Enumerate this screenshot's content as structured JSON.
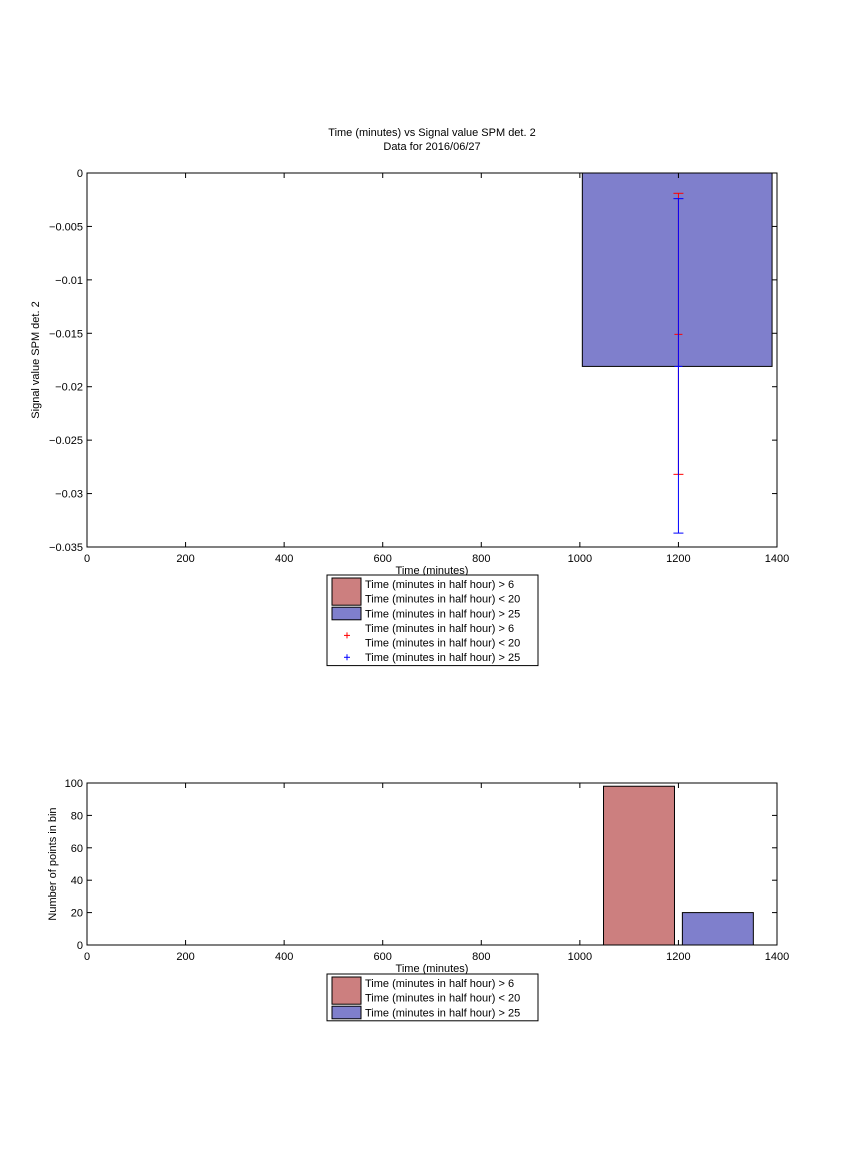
{
  "title": "Time (minutes) vs Signal value SPM det. 2",
  "subtitle": "Data for 2016/06/27",
  "colors": {
    "red_bar": "#cc7f7f",
    "blue_bar": "#7f7fcc",
    "red_marker": "#ff0000",
    "blue_marker": "#0000ff"
  },
  "chart_data": [
    {
      "type": "bar",
      "title": "Time (minutes) vs Signal value SPM det. 2",
      "subtitle": "Data for 2016/06/27",
      "xlabel": "Time (minutes)",
      "ylabel": "Signal value SPM det. 2",
      "xlim": [
        0,
        1400
      ],
      "ylim": [
        -0.035,
        0
      ],
      "xticks": [
        0,
        200,
        400,
        600,
        800,
        1000,
        1200,
        1400
      ],
      "yticks": [
        0,
        -0.005,
        -0.01,
        -0.015,
        -0.02,
        -0.025,
        -0.03,
        -0.035
      ],
      "xtick_labels": [
        "0",
        "200",
        "400",
        "600",
        "800",
        "1000",
        "1200",
        "1400"
      ],
      "ytick_labels": [
        "0",
        "−0.005",
        "−0.01",
        "−0.015",
        "−0.02",
        "−0.025",
        "−0.03",
        "−0.035"
      ],
      "grid": false,
      "legend_position": "below",
      "series": [
        {
          "name": "Time (minutes in half hour) > 6\nTime (minutes in half hour) < 20",
          "kind": "bar",
          "color": "#cc7f7f",
          "bars": []
        },
        {
          "name": "Time (minutes in half hour) > 25",
          "kind": "bar",
          "color": "#7f7fcc",
          "bars": [
            {
              "x0": 1005,
              "x1": 1390,
              "value": -0.0181
            }
          ]
        },
        {
          "name": "Time (minutes in half hour) > 6\nTime (minutes in half hour) < 20",
          "kind": "errorbar",
          "color": "#ff0000",
          "points": [
            {
              "x": 1200,
              "y": -0.0151,
              "low": -0.0282,
              "high": -0.0019
            }
          ]
        },
        {
          "name": "Time (minutes in half hour) > 25",
          "kind": "errorbar",
          "color": "#0000ff",
          "points": [
            {
              "x": 1200,
              "y": -0.0181,
              "low": -0.0337,
              "high": -0.0024
            }
          ]
        }
      ]
    },
    {
      "type": "bar",
      "xlabel": "Time (minutes)",
      "ylabel": "Number of points in bin",
      "xlim": [
        0,
        1400
      ],
      "ylim": [
        0,
        100
      ],
      "xticks": [
        0,
        200,
        400,
        600,
        800,
        1000,
        1200,
        1400
      ],
      "yticks": [
        0,
        20,
        40,
        60,
        80,
        100
      ],
      "xtick_labels": [
        "0",
        "200",
        "400",
        "600",
        "800",
        "1000",
        "1200",
        "1400"
      ],
      "ytick_labels": [
        "0",
        "20",
        "40",
        "60",
        "80",
        "100"
      ],
      "grid": false,
      "legend_position": "below",
      "series": [
        {
          "name": "Time (minutes in half hour) > 6\nTime (minutes in half hour) < 20",
          "color": "#cc7f7f",
          "bars": [
            {
              "x0": 1048,
              "x1": 1192,
              "value": 98
            }
          ]
        },
        {
          "name": "Time (minutes in half hour) > 25",
          "color": "#7f7fcc",
          "bars": [
            {
              "x0": 1208,
              "x1": 1352,
              "value": 20
            }
          ]
        }
      ]
    }
  ]
}
